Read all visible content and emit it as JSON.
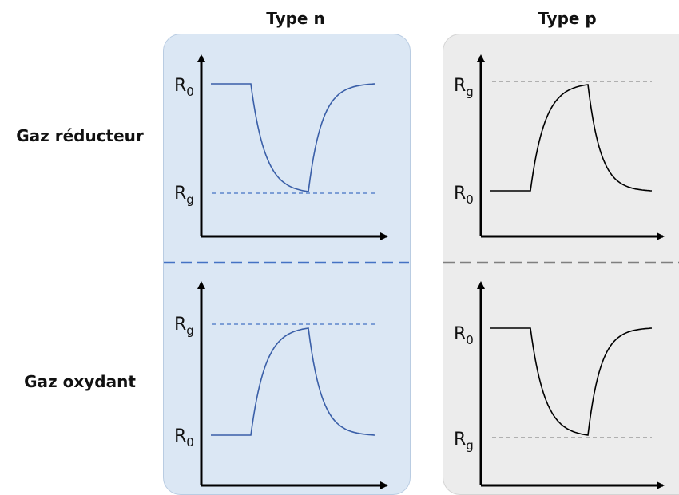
{
  "columns": [
    {
      "title": "Type n",
      "tone": "#3a5fa8"
    },
    {
      "title": "Type p",
      "tone": "#000000"
    }
  ],
  "rows": [
    {
      "title": "Gaz réducteur"
    },
    {
      "title": "Gaz oxydant"
    }
  ],
  "labels": {
    "r0": "R",
    "r0_sub": "0",
    "rg": "R",
    "rg_sub": "g"
  },
  "graphs": [
    {
      "id": "n-reducing",
      "response": "decrease",
      "reference_level": "Rg"
    },
    {
      "id": "p-reducing",
      "response": "increase",
      "reference_level": "Rg"
    },
    {
      "id": "n-oxidizing",
      "response": "increase",
      "reference_level": "Rg"
    },
    {
      "id": "p-oxidizing",
      "response": "decrease",
      "reference_level": "Rg"
    }
  ],
  "colors": {
    "panel_n": "#dbe7f4",
    "panel_p": "#ececec",
    "divider_n": "#4472c4",
    "divider_p": "#7f7f7f",
    "curve_n": "#3a5fa8",
    "curve_p": "#000000",
    "dash_n": "#4472c4",
    "dash_p": "#8c8c8c"
  }
}
